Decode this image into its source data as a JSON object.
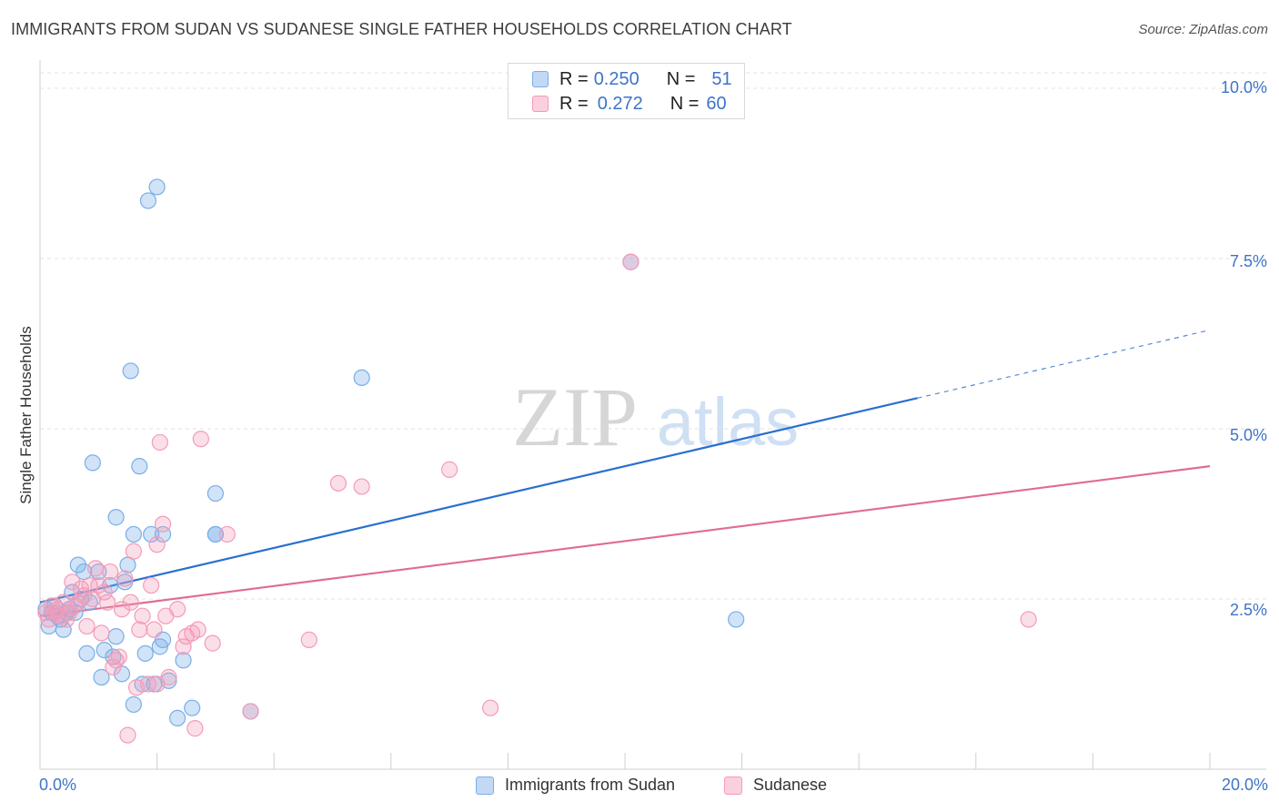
{
  "title": "IMMIGRANTS FROM SUDAN VS SUDANESE SINGLE FATHER HOUSEHOLDS CORRELATION CHART",
  "source": "Source: ZipAtlas.com",
  "watermark": {
    "zip": "ZIP",
    "atlas": "atlas"
  },
  "legend": {
    "rows": [
      {
        "r_label": "R = ",
        "r_value": "0.250",
        "n_label": "N = ",
        "n_value": "51"
      },
      {
        "r_label": "R = ",
        "r_value": "0.272",
        "n_label": "N = ",
        "n_value": "60"
      }
    ]
  },
  "chart_data": {
    "type": "scatter",
    "title": "IMMIGRANTS FROM SUDAN VS SUDANESE SINGLE FATHER HOUSEHOLDS CORRELATION CHART",
    "xlabel": "",
    "ylabel": "Single Father Households",
    "xlim": [
      0,
      20
    ],
    "ylim": [
      0,
      10.2
    ],
    "x_tick_labels": [
      "0.0%",
      "20.0%"
    ],
    "y_ticks": [
      2.5,
      5.0,
      7.5,
      10.0
    ],
    "y_tick_labels": [
      "2.5%",
      "5.0%",
      "7.5%",
      "10.0%"
    ],
    "grid": true,
    "legend_position": "top-center",
    "series": [
      {
        "name": "Immigrants from Sudan",
        "color": "#7aaee8",
        "line_color": "#2a6fd0",
        "r": 0.25,
        "n": 51,
        "trend": {
          "x0": 0,
          "y0": 2.45,
          "x1": 15.0,
          "y1": 5.45,
          "dash_to_x": 20,
          "dash_to_y": 6.45
        },
        "points": [
          [
            0.1,
            2.35
          ],
          [
            0.15,
            2.1
          ],
          [
            0.2,
            2.3
          ],
          [
            0.25,
            2.4
          ],
          [
            0.3,
            2.25
          ],
          [
            0.35,
            2.2
          ],
          [
            0.4,
            2.05
          ],
          [
            0.45,
            2.3
          ],
          [
            0.5,
            2.35
          ],
          [
            0.55,
            2.6
          ],
          [
            0.6,
            2.3
          ],
          [
            0.65,
            3.0
          ],
          [
            0.7,
            2.5
          ],
          [
            0.75,
            2.9
          ],
          [
            0.8,
            1.7
          ],
          [
            0.85,
            2.45
          ],
          [
            0.9,
            4.5
          ],
          [
            1.0,
            2.9
          ],
          [
            1.05,
            1.35
          ],
          [
            1.1,
            1.75
          ],
          [
            1.2,
            2.7
          ],
          [
            1.25,
            1.65
          ],
          [
            1.3,
            1.95
          ],
          [
            1.3,
            3.7
          ],
          [
            1.4,
            1.4
          ],
          [
            1.45,
            2.75
          ],
          [
            1.5,
            3.0
          ],
          [
            1.55,
            5.85
          ],
          [
            1.6,
            0.95
          ],
          [
            1.6,
            3.45
          ],
          [
            1.7,
            4.45
          ],
          [
            1.75,
            1.25
          ],
          [
            1.8,
            1.7
          ],
          [
            1.85,
            8.35
          ],
          [
            1.9,
            3.45
          ],
          [
            1.95,
            1.25
          ],
          [
            2.0,
            8.55
          ],
          [
            2.05,
            1.8
          ],
          [
            2.1,
            1.9
          ],
          [
            2.1,
            3.45
          ],
          [
            2.2,
            1.3
          ],
          [
            2.35,
            0.75
          ],
          [
            2.45,
            1.6
          ],
          [
            2.6,
            0.9
          ],
          [
            3.0,
            4.05
          ],
          [
            3.0,
            3.45
          ],
          [
            3.6,
            0.85
          ],
          [
            3.0,
            3.45
          ],
          [
            5.5,
            5.75
          ],
          [
            10.1,
            7.45
          ],
          [
            11.9,
            2.2
          ]
        ]
      },
      {
        "name": "Sudanese",
        "color": "#f49bb7",
        "line_color": "#e06b96",
        "r": 0.272,
        "n": 60,
        "trend": {
          "x0": 0,
          "y0": 2.25,
          "x1": 20,
          "y1": 4.45
        },
        "points": [
          [
            0.1,
            2.3
          ],
          [
            0.15,
            2.2
          ],
          [
            0.2,
            2.4
          ],
          [
            0.25,
            2.3
          ],
          [
            0.3,
            2.35
          ],
          [
            0.35,
            2.25
          ],
          [
            0.4,
            2.45
          ],
          [
            0.45,
            2.2
          ],
          [
            0.5,
            2.3
          ],
          [
            0.55,
            2.75
          ],
          [
            0.6,
            2.4
          ],
          [
            0.65,
            2.45
          ],
          [
            0.7,
            2.65
          ],
          [
            0.75,
            2.55
          ],
          [
            0.8,
            2.1
          ],
          [
            0.85,
            2.7
          ],
          [
            0.9,
            2.5
          ],
          [
            0.95,
            2.95
          ],
          [
            1.0,
            2.7
          ],
          [
            1.05,
            2.0
          ],
          [
            1.1,
            2.6
          ],
          [
            1.15,
            2.45
          ],
          [
            1.2,
            2.9
          ],
          [
            1.25,
            1.5
          ],
          [
            1.3,
            1.6
          ],
          [
            1.35,
            1.65
          ],
          [
            1.4,
            2.35
          ],
          [
            1.45,
            2.8
          ],
          [
            1.5,
            0.5
          ],
          [
            1.55,
            2.45
          ],
          [
            1.6,
            3.2
          ],
          [
            1.65,
            1.2
          ],
          [
            1.7,
            2.05
          ],
          [
            1.75,
            2.25
          ],
          [
            1.85,
            1.25
          ],
          [
            1.9,
            2.7
          ],
          [
            1.95,
            2.05
          ],
          [
            2.0,
            3.3
          ],
          [
            2.05,
            4.8
          ],
          [
            2.1,
            3.6
          ],
          [
            2.15,
            2.25
          ],
          [
            2.2,
            1.35
          ],
          [
            2.35,
            2.35
          ],
          [
            2.45,
            1.8
          ],
          [
            2.5,
            1.95
          ],
          [
            2.6,
            2.0
          ],
          [
            2.65,
            0.6
          ],
          [
            2.7,
            2.05
          ],
          [
            2.75,
            4.85
          ],
          [
            2.95,
            1.85
          ],
          [
            3.2,
            3.45
          ],
          [
            3.6,
            0.85
          ],
          [
            4.6,
            1.9
          ],
          [
            5.1,
            4.2
          ],
          [
            5.5,
            4.15
          ],
          [
            7.0,
            4.4
          ],
          [
            7.7,
            0.9
          ],
          [
            10.1,
            7.45
          ],
          [
            16.9,
            2.2
          ],
          [
            2.0,
            1.25
          ]
        ]
      }
    ]
  }
}
